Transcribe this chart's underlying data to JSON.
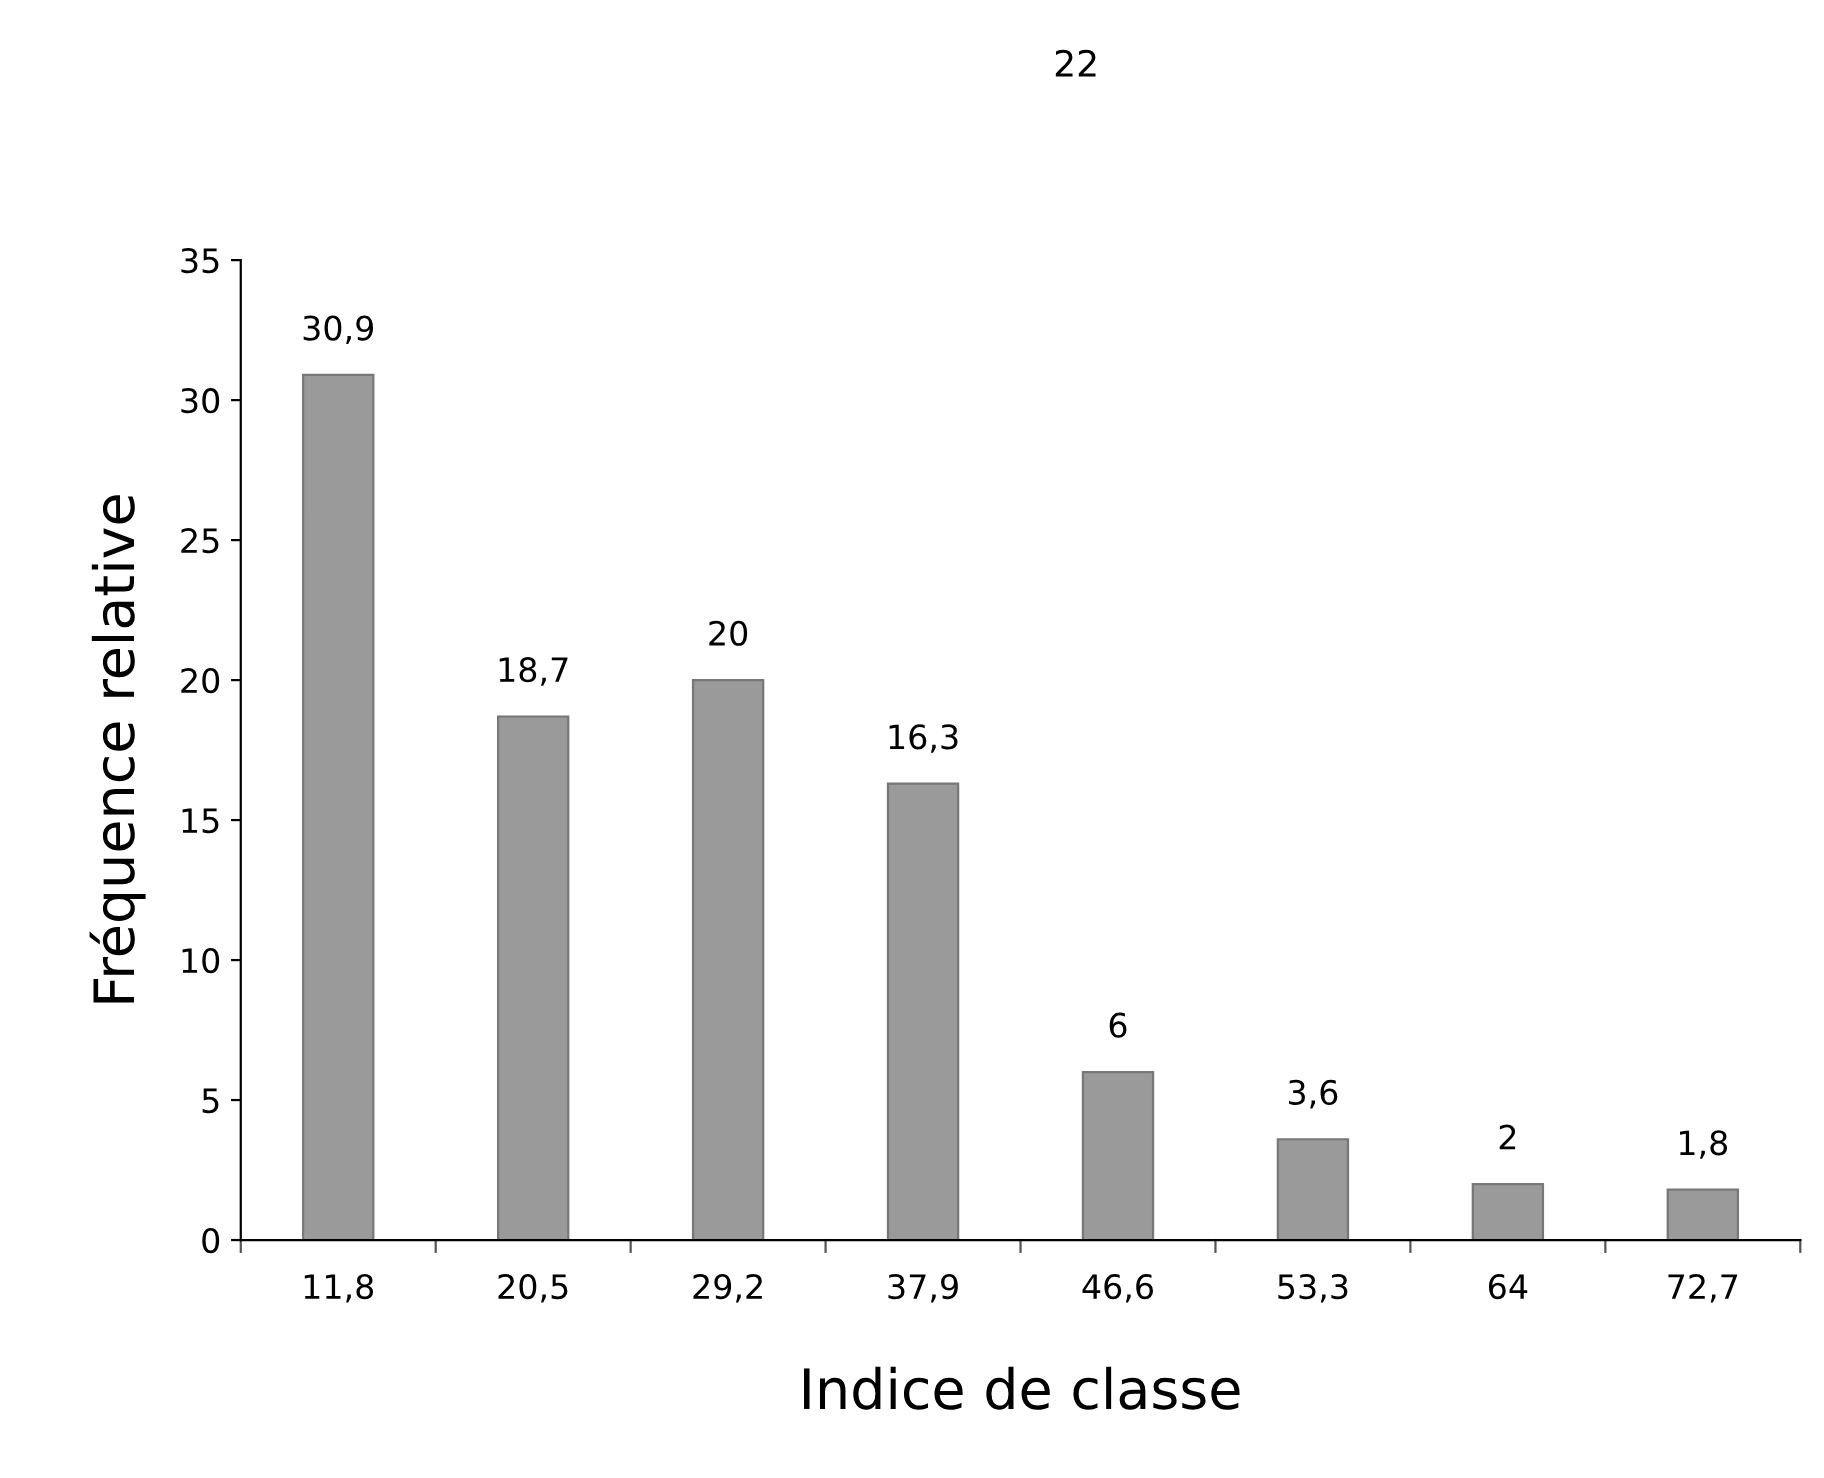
{
  "chart_data": {
    "type": "bar",
    "xlabel": "Indice de classe",
    "ylabel": "Fréquence relative",
    "categories": [
      "11,8",
      "20,5",
      "29,2",
      "37,9",
      "46,6",
      "53,3",
      "64",
      "72,7"
    ],
    "values": [
      30.9,
      18.7,
      20,
      16.3,
      6,
      3.6,
      2,
      1.8
    ],
    "value_labels": [
      "30,9",
      "18,7",
      "20",
      "16,3",
      "6",
      "3,6",
      "2",
      "1,8"
    ],
    "color": "#9a9a9a",
    "ylim": [
      0,
      35
    ],
    "yticks": [
      0,
      5,
      10,
      15,
      20,
      25,
      30,
      35
    ],
    "grid": false,
    "legend": false,
    "annotations": [
      "22"
    ]
  }
}
